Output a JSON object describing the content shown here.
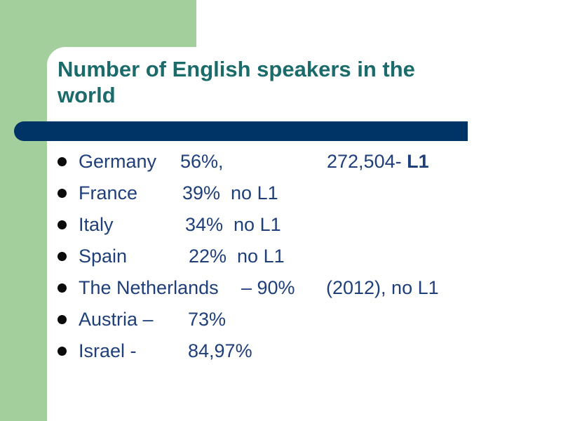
{
  "slide": {
    "title": "Number of English speakers in the world",
    "items": [
      {
        "country": "Germany",
        "pct": "56%,",
        "note": "272,504- ",
        "note_bold": "L1"
      },
      {
        "country": "France",
        "pct": "39%  no L1"
      },
      {
        "country": "Italy",
        "pct": "34%  no L1"
      },
      {
        "country": "Spain",
        "pct": "22%  no L1"
      },
      {
        "country": "The Netherlands",
        "pct": "– 90%",
        "note": "(2012), no L1"
      },
      {
        "country": "Austria –",
        "pct": "73%"
      },
      {
        "country": "Israel -",
        "pct": "84,97%"
      }
    ]
  },
  "colors": {
    "green_block": "#a2cf9c",
    "title": "#1c6b6b",
    "bar": "#003366",
    "text": "#1f3f7a"
  }
}
